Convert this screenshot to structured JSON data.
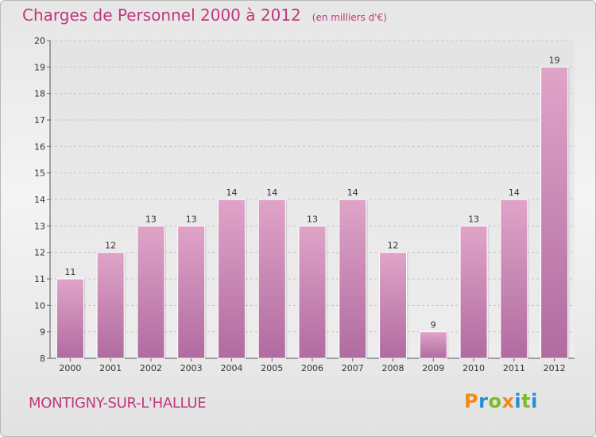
{
  "header": {
    "title": "Charges de Personnel 2000 à 2012",
    "subtitle": "(en milliers d'€)"
  },
  "footer": {
    "place_name": "MONTIGNY-SUR-L'HALLUE",
    "logo_text": "Proxiti"
  },
  "colors": {
    "title": "#c0387a",
    "bar_top": "#e0a4c8",
    "bar_bottom": "#b06ba0",
    "logo_letters": [
      "#f08a1c",
      "#1f8fd0",
      "#7dbb2a",
      "#f08a1c",
      "#1f8fd0",
      "#7dbb2a",
      "#1f8fd0"
    ]
  },
  "chart_data": {
    "type": "bar",
    "title": "Charges de Personnel 2000 à 2012",
    "subtitle": "(en milliers d'€)",
    "xlabel": "",
    "ylabel": "",
    "categories": [
      "2000",
      "2001",
      "2002",
      "2003",
      "2004",
      "2005",
      "2006",
      "2007",
      "2008",
      "2009",
      "2010",
      "2011",
      "2012"
    ],
    "values": [
      11,
      12,
      13,
      13,
      14,
      14,
      13,
      14,
      12,
      9,
      13,
      14,
      19
    ],
    "ylim": [
      8,
      20
    ],
    "yticks": [
      8,
      9,
      10,
      11,
      12,
      13,
      14,
      15,
      16,
      17,
      18,
      19,
      20
    ],
    "grid": true,
    "data_labels": true
  }
}
